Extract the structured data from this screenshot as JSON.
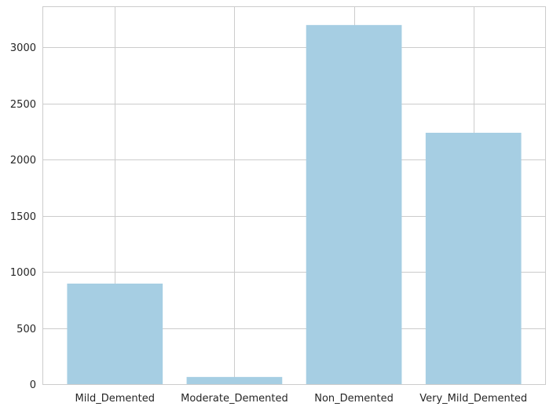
{
  "chart_data": {
    "type": "bar",
    "title": "",
    "xlabel": "",
    "ylabel": "",
    "categories": [
      "Mild_Demented",
      "Moderate_Demented",
      "Non_Demented",
      "Very_Mild_Demented"
    ],
    "values": [
      896,
      64,
      3200,
      2240
    ],
    "ylim": [
      0,
      3360
    ],
    "yticks": [
      0,
      500,
      1000,
      1500,
      2000,
      2500,
      3000
    ],
    "grid": true,
    "legend": "none",
    "colors": {
      "bar": "#a6cee3",
      "grid": "#cccccc",
      "spine": "#cccccc",
      "text": "#262626",
      "background": "#ffffff"
    }
  }
}
